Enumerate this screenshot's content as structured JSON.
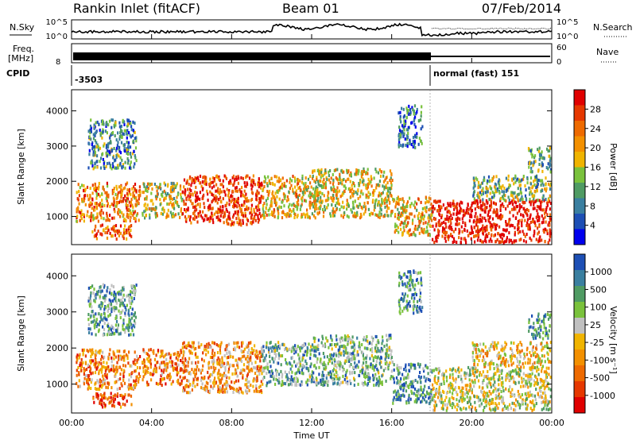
{
  "header": {
    "title": "Rankin Inlet (fitACF)",
    "beam": "Beam 01",
    "date": "07/Feb/2014"
  },
  "status_panels": {
    "nsky_label": "N.Sky",
    "nsearch_label": "N.Search",
    "nsky_ticks": [
      "10^5",
      "10^0"
    ],
    "freq_label": "Freq.",
    "freq_unit": "[MHz]",
    "freq_ticks": [
      "8"
    ],
    "nave_label": "Nave",
    "nave_ticks": [
      "60",
      "0"
    ],
    "cpid_label": "CPID",
    "cpid_values": [
      {
        "text": "-3503",
        "t_start": 0.0,
        "t_end": 18.0
      },
      {
        "text": "normal (fast) 151",
        "t_start": 18.0,
        "t_end": 24.0
      }
    ]
  },
  "chart_data": [
    {
      "type": "heatmap",
      "name": "power-panel",
      "ylabel": "Slant Range [km]",
      "yticks": [
        1000,
        2000,
        3000,
        4000
      ],
      "ylim": [
        200,
        4600
      ],
      "xlim": [
        0,
        24
      ],
      "colorbar": {
        "label": "Power [dB]",
        "ticks": [
          "4",
          "8",
          "12",
          "16",
          "20",
          "24",
          "28"
        ],
        "colors": [
          "#0000ee",
          "#1d4fb5",
          "#3a7fa0",
          "#4f9b63",
          "#7ac23c",
          "#f0b400",
          "#f39000",
          "#ee6a00",
          "#e63800",
          "#e00000"
        ]
      },
      "regions": [
        {
          "t0": 0.2,
          "t1": 3.4,
          "r0": 900,
          "r1": 2000,
          "v": 0.7
        },
        {
          "t0": 1.0,
          "t1": 3.0,
          "r0": 400,
          "r1": 800,
          "v": 0.8
        },
        {
          "t0": 0.8,
          "t1": 3.2,
          "r0": 2400,
          "r1": 3800,
          "v": 0.3
        },
        {
          "t0": 3.5,
          "t1": 5.5,
          "r0": 1000,
          "r1": 2000,
          "v": 0.5
        },
        {
          "t0": 5.5,
          "t1": 9.5,
          "r0": 800,
          "r1": 2200,
          "v": 0.85
        },
        {
          "t0": 9.5,
          "t1": 12.0,
          "r0": 1000,
          "r1": 2200,
          "v": 0.6
        },
        {
          "t0": 12.0,
          "t1": 16.0,
          "r0": 1000,
          "r1": 2400,
          "v": 0.55
        },
        {
          "t0": 16.0,
          "t1": 18.0,
          "r0": 500,
          "r1": 1600,
          "v": 0.6
        },
        {
          "t0": 16.3,
          "t1": 17.5,
          "r0": 3000,
          "r1": 4200,
          "v": 0.25
        },
        {
          "t0": 18.0,
          "t1": 24.0,
          "r0": 300,
          "r1": 1500,
          "v": 0.95
        },
        {
          "t0": 20.0,
          "t1": 24.0,
          "r0": 1500,
          "r1": 2200,
          "v": 0.4
        },
        {
          "t0": 22.8,
          "t1": 24.0,
          "r0": 2300,
          "r1": 3000,
          "v": 0.35
        }
      ]
    },
    {
      "type": "heatmap",
      "name": "velocity-panel",
      "xlabel": "Time UT",
      "xticks": [
        "00:00",
        "04:00",
        "08:00",
        "12:00",
        "16:00",
        "20:00",
        "00:00"
      ],
      "ylabel": "Slant Range [km]",
      "yticks": [
        1000,
        2000,
        3000,
        4000
      ],
      "ylim": [
        200,
        4600
      ],
      "xlim": [
        0,
        24
      ],
      "colorbar": {
        "label": "Velocity [m s⁻¹]",
        "ticks": [
          "1000",
          "500",
          "100",
          "25",
          "-25",
          "-100",
          "-500",
          "-1000"
        ],
        "colors": [
          "#1d4fb5",
          "#3a7fa0",
          "#4f9b63",
          "#7ac23c",
          "#c0c0c0",
          "#f0b400",
          "#f39000",
          "#ee6a00",
          "#e63800",
          "#e00000"
        ]
      },
      "regions": [
        {
          "t0": 0.2,
          "t1": 3.4,
          "r0": 900,
          "r1": 2000,
          "v": 0.3
        },
        {
          "t0": 1.0,
          "t1": 3.0,
          "r0": 400,
          "r1": 800,
          "v": 0.2
        },
        {
          "t0": 0.8,
          "t1": 3.2,
          "r0": 2400,
          "r1": 3800,
          "v": 0.75
        },
        {
          "t0": 3.5,
          "t1": 5.5,
          "r0": 1000,
          "r1": 2000,
          "v": 0.3
        },
        {
          "t0": 5.5,
          "t1": 9.5,
          "r0": 800,
          "r1": 2200,
          "v": 0.35
        },
        {
          "t0": 9.5,
          "t1": 12.0,
          "r0": 1000,
          "r1": 2200,
          "v": 0.72
        },
        {
          "t0": 12.0,
          "t1": 16.0,
          "r0": 1000,
          "r1": 2400,
          "v": 0.7
        },
        {
          "t0": 16.0,
          "t1": 18.0,
          "r0": 500,
          "r1": 1600,
          "v": 0.8
        },
        {
          "t0": 16.3,
          "t1": 17.5,
          "r0": 3000,
          "r1": 4200,
          "v": 0.8
        },
        {
          "t0": 18.0,
          "t1": 24.0,
          "r0": 300,
          "r1": 1500,
          "v": 0.55
        },
        {
          "t0": 20.0,
          "t1": 24.0,
          "r0": 1500,
          "r1": 2200,
          "v": 0.45
        },
        {
          "t0": 22.8,
          "t1": 24.0,
          "r0": 2300,
          "r1": 3000,
          "v": 0.8
        }
      ]
    }
  ]
}
